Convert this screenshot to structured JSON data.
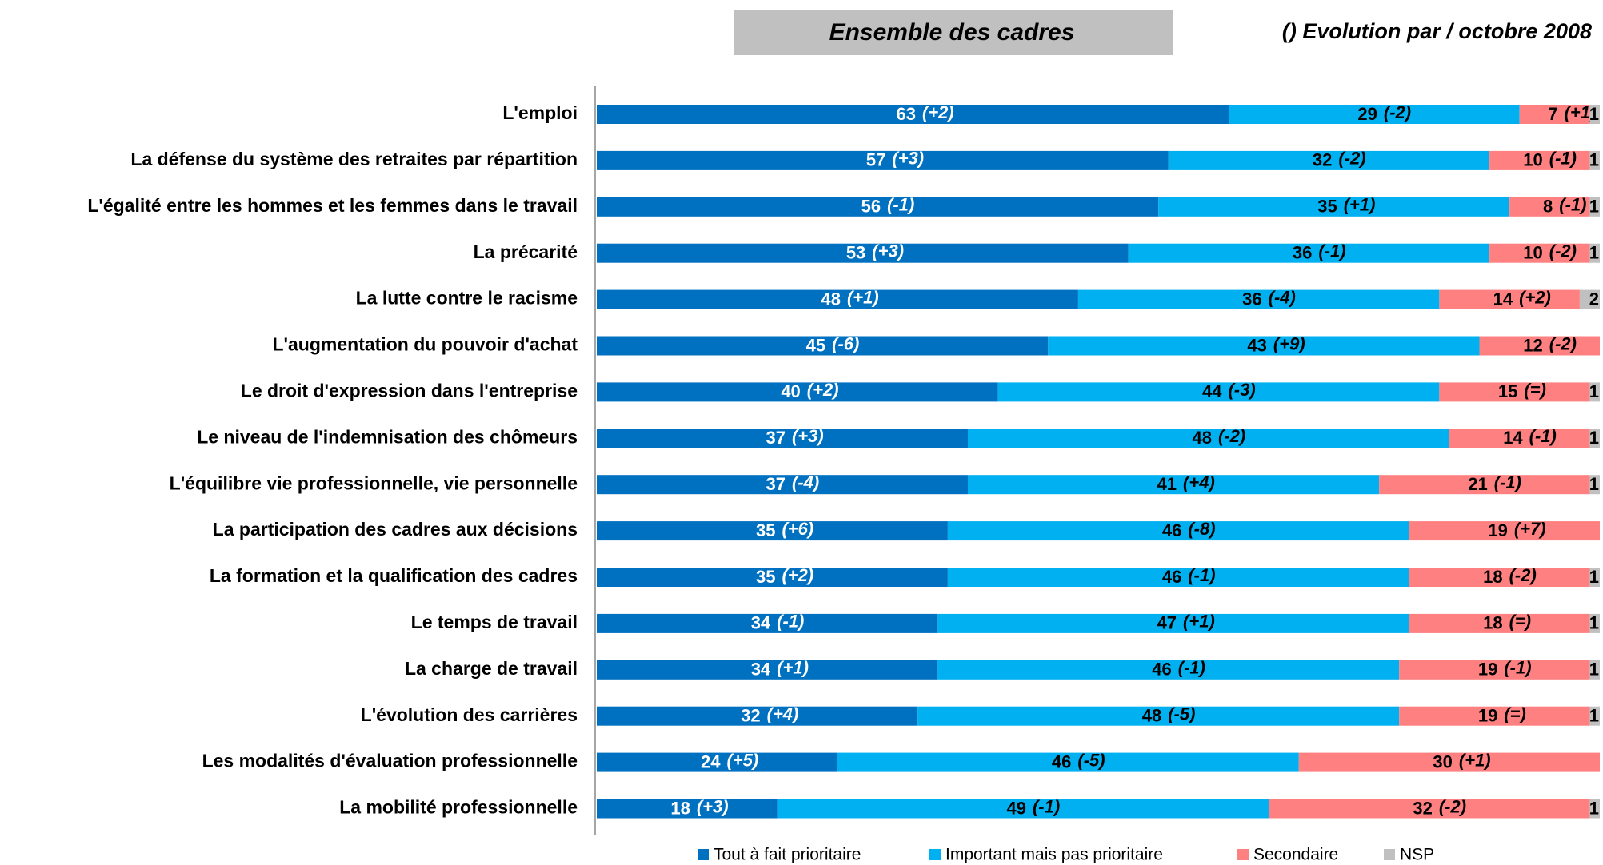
{
  "chart_data": {
    "type": "stacked-bar",
    "orientation": "horizontal",
    "title": "Ensemble des cadres",
    "subtitle": "() Evolution par / octobre 2008",
    "categories": [
      "L'emploi",
      "La défense du système des retraites par répartition",
      "L'égalité entre les hommes et les femmes dans le travail",
      "La précarité",
      "La lutte contre le racisme",
      "L'augmentation du pouvoir d'achat",
      "Le droit d'expression dans l'entreprise",
      "Le niveau de l'indemnisation des chômeurs",
      "L'équilibre vie professionnelle, vie personnelle",
      "La participation des cadres aux décisions",
      "La formation et la qualification des cadres",
      "Le temps de travail",
      "La charge de travail",
      "L'évolution des carrières",
      "Les modalités d'évaluation professionnelle",
      "La mobilité professionnelle"
    ],
    "series": [
      {
        "name": "Tout à fait prioritaire",
        "color": "#0070c0",
        "values": [
          63,
          57,
          56,
          53,
          48,
          45,
          40,
          37,
          37,
          35,
          35,
          34,
          34,
          32,
          24,
          18
        ],
        "changes": [
          "(+2)",
          "(+3)",
          "(-1)",
          "(+3)",
          "(+1)",
          "(-6)",
          "(+2)",
          "(+3)",
          "(-4)",
          "(+6)",
          "(+2)",
          "(-1)",
          "(+1)",
          "(+4)",
          "(+5)",
          "(+3)"
        ]
      },
      {
        "name": "Important mais pas prioritaire",
        "color": "#00b0f0",
        "values": [
          29,
          32,
          35,
          36,
          36,
          43,
          44,
          48,
          41,
          46,
          46,
          47,
          46,
          48,
          46,
          49
        ],
        "changes": [
          "(-2)",
          "(-2)",
          "(+1)",
          "(-1)",
          "(-4)",
          "(+9)",
          "(-3)",
          "(-2)",
          "(+4)",
          "(-8)",
          "(-1)",
          "(+1)",
          "(-1)",
          "(-5)",
          "(-5)",
          "(-1)"
        ]
      },
      {
        "name": "Secondaire",
        "color": "#ff8080",
        "values": [
          7,
          10,
          8,
          10,
          14,
          12,
          15,
          14,
          21,
          19,
          18,
          18,
          19,
          19,
          30,
          32
        ],
        "changes": [
          "(+1)",
          "(-1)",
          "(-1)",
          "(-2)",
          "(+2)",
          "(-2)",
          "(=)",
          "(-1)",
          "(-1)",
          "(+7)",
          "(-2)",
          "(=)",
          "(-1)",
          "(=)",
          "(+1)",
          "(-2)"
        ]
      },
      {
        "name": "NSP",
        "color": "#c0c0c0",
        "values": [
          1,
          1,
          1,
          1,
          2,
          null,
          1,
          1,
          1,
          null,
          1,
          1,
          1,
          1,
          null,
          1
        ]
      }
    ],
    "xlim": [
      0,
      100
    ]
  }
}
